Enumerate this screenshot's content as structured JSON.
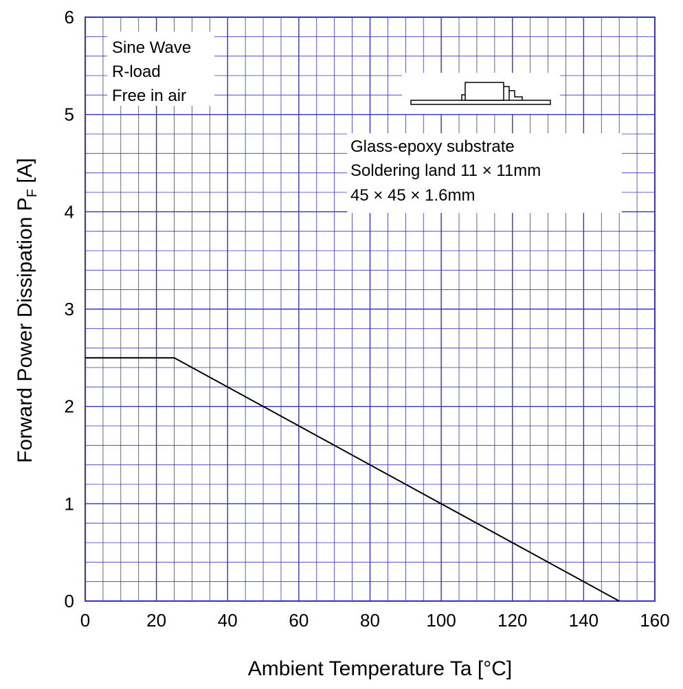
{
  "chart_data": {
    "type": "line",
    "xlabel": "Ambient Temperature  Ta  [°C]",
    "ylabel": "Forward Power Dissipation  P",
    "ylabel_sub": "F",
    "ylabel_unit": "  [A]",
    "xlim": [
      0,
      160
    ],
    "ylim": [
      0,
      6
    ],
    "x_ticks": [
      "0",
      "20",
      "40",
      "60",
      "80",
      "100",
      "120",
      "140",
      "160"
    ],
    "y_ticks": [
      "0",
      "1",
      "2",
      "3",
      "4",
      "5",
      "6"
    ],
    "grid": true,
    "colors": {
      "grid": "#3333cc",
      "line": "#000000"
    },
    "series": [
      {
        "x": [
          0,
          25,
          150
        ],
        "y": [
          2.5,
          2.5,
          0
        ]
      }
    ],
    "annotations": {
      "conditions": [
        "Sine Wave",
        "R-load",
        "Free in air"
      ],
      "substrate": [
        "Glass-epoxy  substrate",
        "Soldering land 11 × 11mm",
        "45 × 45 × 1.6mm"
      ]
    }
  }
}
